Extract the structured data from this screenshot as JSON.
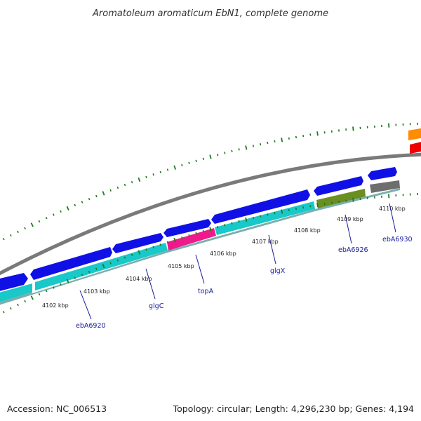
{
  "title": "Aromatoleum aromaticum EbN1, complete genome",
  "footer": {
    "accession": "Accession: NC_006513",
    "summary": "Topology: circular; Length: 4,296,230 bp; Genes: 4,194"
  },
  "colors": {
    "backbone": "#7a7a7a",
    "cds_forward": "#1010e6",
    "cds_reverse": "#19c8c8",
    "topA": "#ee1a8c",
    "olive_gene": "#6b8e23",
    "grey_gene": "#6e6e6e",
    "orange_gene": "#ff8c00",
    "red_gene": "#ee0000",
    "tick": "#1f7a1f",
    "label": "#1a1aa0"
  },
  "ticks": [
    {
      "label": "4102 kbp"
    },
    {
      "label": "4103 kbp"
    },
    {
      "label": "4104 kbp"
    },
    {
      "label": "4105 kbp"
    },
    {
      "label": "4106 kbp"
    },
    {
      "label": "4107 kbp"
    },
    {
      "label": "4108 kbp"
    },
    {
      "label": "4109 kbp"
    },
    {
      "label": "4110 kbp"
    }
  ],
  "gene_labels": [
    {
      "name": "ebA6920"
    },
    {
      "name": "glgC"
    },
    {
      "name": "topA"
    },
    {
      "name": "glgX"
    },
    {
      "name": "ebA6926"
    },
    {
      "name": "ebA6930"
    }
  ]
}
